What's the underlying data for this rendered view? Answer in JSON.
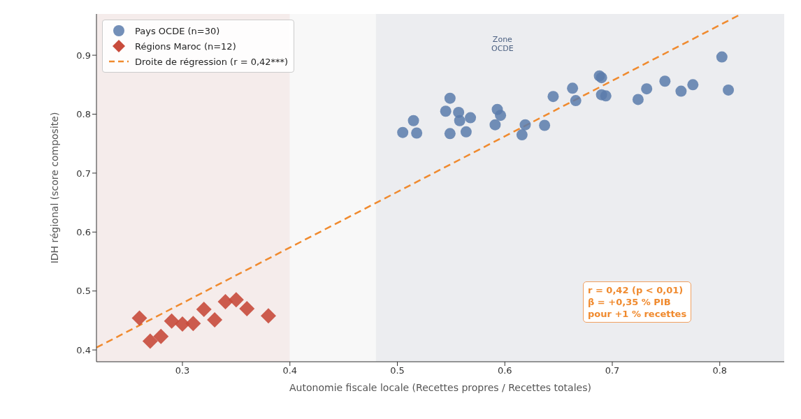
{
  "chart_data": {
    "type": "scatter",
    "xlabel": "Autonomie fiscale locale (Recettes propres / Recettes totales)",
    "ylabel": "IDH régional (score composite)",
    "xlim": [
      0.22,
      0.86
    ],
    "ylim": [
      0.38,
      0.97
    ],
    "xticks": [
      0.3,
      0.4,
      0.5,
      0.6,
      0.7,
      0.8
    ],
    "yticks": [
      0.4,
      0.5,
      0.6,
      0.7,
      0.8,
      0.9
    ],
    "grid": false,
    "legend": "top left",
    "bands": [
      {
        "axis": "x",
        "from": 0.22,
        "to": 0.4,
        "color": "#f5eceb"
      },
      {
        "axis": "x",
        "from": 0.4,
        "to": 0.48,
        "color": "#f8f8f8"
      },
      {
        "axis": "x",
        "from": 0.48,
        "to": 0.86,
        "color": "#ecedf0",
        "label": "Zone\nOCDE"
      }
    ],
    "annotations": [
      "r = 0,42 (p < 0,01)\nβ = +0,35 % PIB\npour +1 % recettes"
    ],
    "series": [
      {
        "name": "Pays OCDE (n=30)",
        "type": "scatter",
        "marker": "circle",
        "color": "#5b7bab",
        "x": [
          0.505,
          0.515,
          0.518,
          0.545,
          0.549,
          0.549,
          0.557,
          0.558,
          0.564,
          0.568,
          0.593,
          0.591,
          0.596,
          0.616,
          0.619,
          0.637,
          0.645,
          0.663,
          0.666,
          0.688,
          0.69,
          0.69,
          0.694,
          0.724,
          0.732,
          0.749,
          0.764,
          0.775,
          0.802,
          0.808
        ],
        "values": [
          0.769,
          0.789,
          0.768,
          0.805,
          0.827,
          0.767,
          0.803,
          0.789,
          0.77,
          0.794,
          0.808,
          0.782,
          0.798,
          0.765,
          0.782,
          0.781,
          0.83,
          0.844,
          0.823,
          0.865,
          0.862,
          0.833,
          0.831,
          0.825,
          0.843,
          0.856,
          0.839,
          0.85,
          0.897,
          0.841
        ]
      },
      {
        "name": "Régions Maroc (n=12)",
        "type": "scatter",
        "marker": "diamond",
        "color": "#c84b3c",
        "x": [
          0.26,
          0.27,
          0.28,
          0.29,
          0.3,
          0.31,
          0.32,
          0.33,
          0.34,
          0.35,
          0.36,
          0.38
        ],
        "values": [
          0.454,
          0.415,
          0.423,
          0.449,
          0.444,
          0.445,
          0.469,
          0.451,
          0.482,
          0.485,
          0.47,
          0.458
        ]
      },
      {
        "name": "Droite de régression (r = 0,42***)",
        "type": "line",
        "marker": "none",
        "line_style": "dashed",
        "color": "#f08a2e",
        "x": [
          0.22,
          0.82
        ],
        "values": [
          0.404,
          0.97
        ]
      }
    ]
  }
}
